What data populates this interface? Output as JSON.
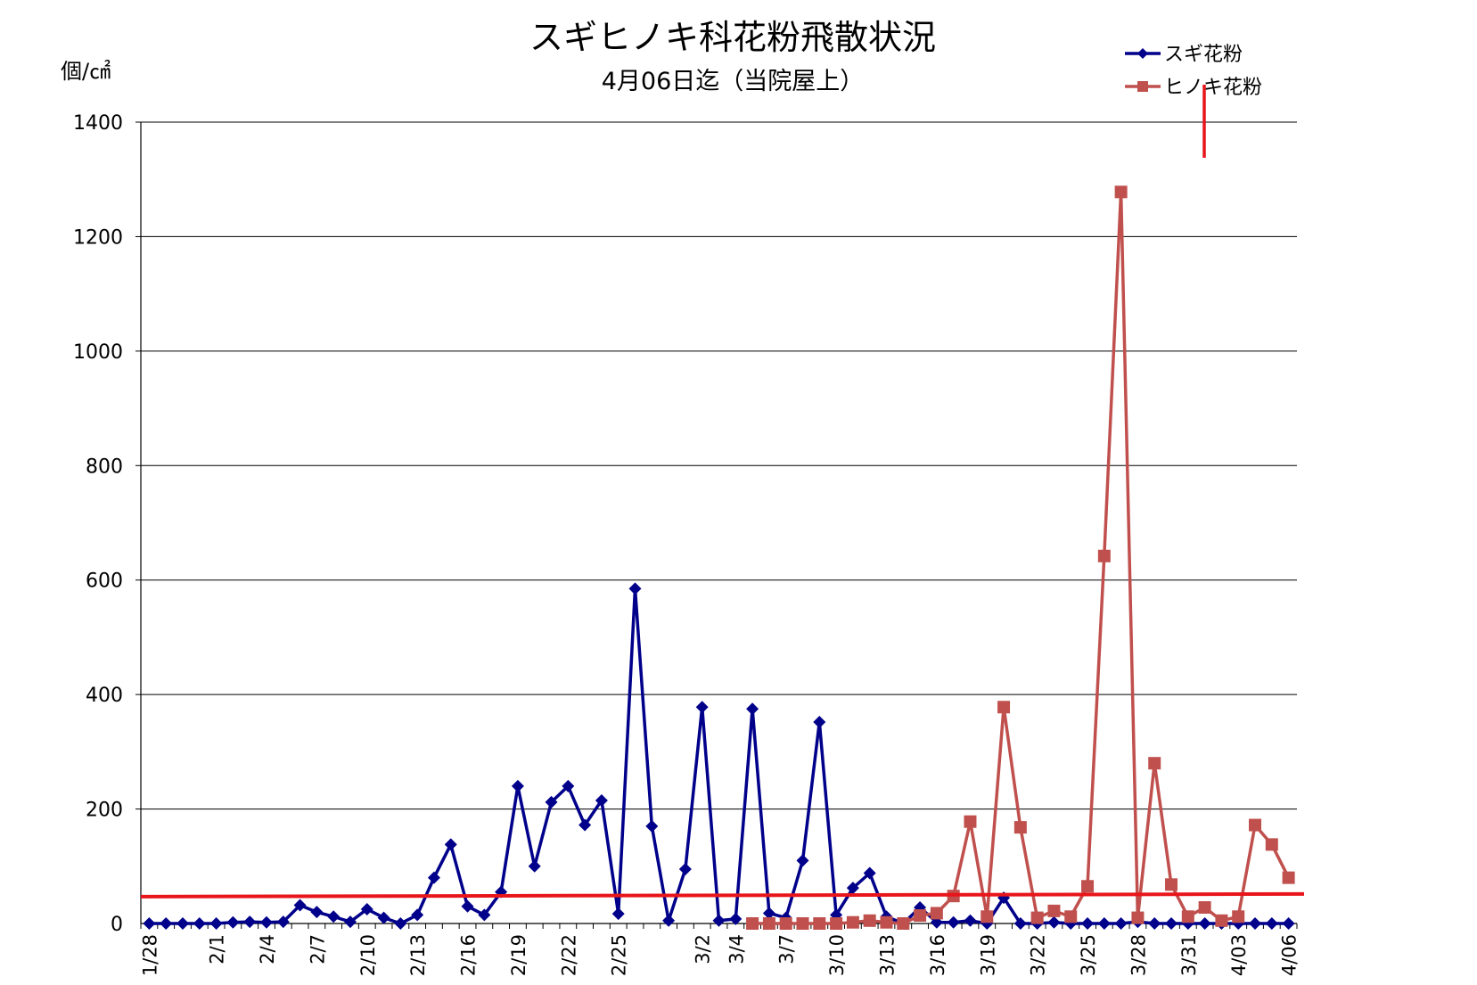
{
  "chart_data": {
    "type": "line",
    "title": "スギヒノキ科花粉飛散状況",
    "subtitle": "4月06日迄（当院屋上）",
    "ylabel": "個/㎠",
    "xlabel": "",
    "ylim": [
      0,
      1400
    ],
    "yticks": [
      "0",
      "200",
      "400",
      "600",
      "800",
      "1000",
      "1200",
      "1400"
    ],
    "grid": true,
    "legend_position": "top-right",
    "x_start": "1/28",
    "x_end": "4/06",
    "x_tick_labels": [
      "1/28",
      "2/1",
      "2/4",
      "2/7",
      "2/10",
      "2/13",
      "2/16",
      "2/19",
      "2/22",
      "2/25",
      "3/2",
      "3/4",
      "3/7",
      "3/10",
      "3/13",
      "3/16",
      "3/19",
      "3/22",
      "3/25",
      "3/28",
      "3/31",
      "4/03",
      "4/06"
    ],
    "x_tick_days": [
      0,
      4,
      7,
      10,
      13,
      16,
      19,
      22,
      25,
      28,
      33,
      35,
      38,
      41,
      44,
      47,
      50,
      53,
      56,
      59,
      62,
      65,
      68
    ],
    "threshold": {
      "value": 50,
      "color": "#e8151b"
    },
    "series": [
      {
        "name": "スギ花粉",
        "color": "#00008b",
        "marker": "diamond",
        "start_day": 0,
        "values": [
          0,
          0,
          0,
          0,
          0,
          2,
          3,
          2,
          3,
          32,
          20,
          12,
          3,
          25,
          10,
          0,
          15,
          80,
          138,
          30,
          15,
          55,
          240,
          100,
          212,
          240,
          172,
          215,
          17,
          585,
          170,
          5,
          95,
          378,
          5,
          8,
          375,
          18,
          10,
          110,
          352,
          15,
          62,
          88,
          12,
          0,
          28,
          2,
          2,
          5,
          0,
          45,
          0,
          0,
          2,
          0,
          0,
          0,
          0,
          3,
          0,
          0,
          0,
          0,
          0,
          0,
          0,
          0,
          0
        ]
      },
      {
        "name": "ヒノキ花粉",
        "color": "#c0504d",
        "marker": "square",
        "start_day": 36,
        "values": [
          0,
          0,
          0,
          0,
          0,
          0,
          2,
          5,
          2,
          0,
          14,
          18,
          48,
          178,
          12,
          378,
          168,
          10,
          22,
          12,
          65,
          642,
          1278,
          10,
          280,
          68,
          12,
          28,
          5,
          12,
          172,
          138,
          80
        ]
      }
    ]
  }
}
